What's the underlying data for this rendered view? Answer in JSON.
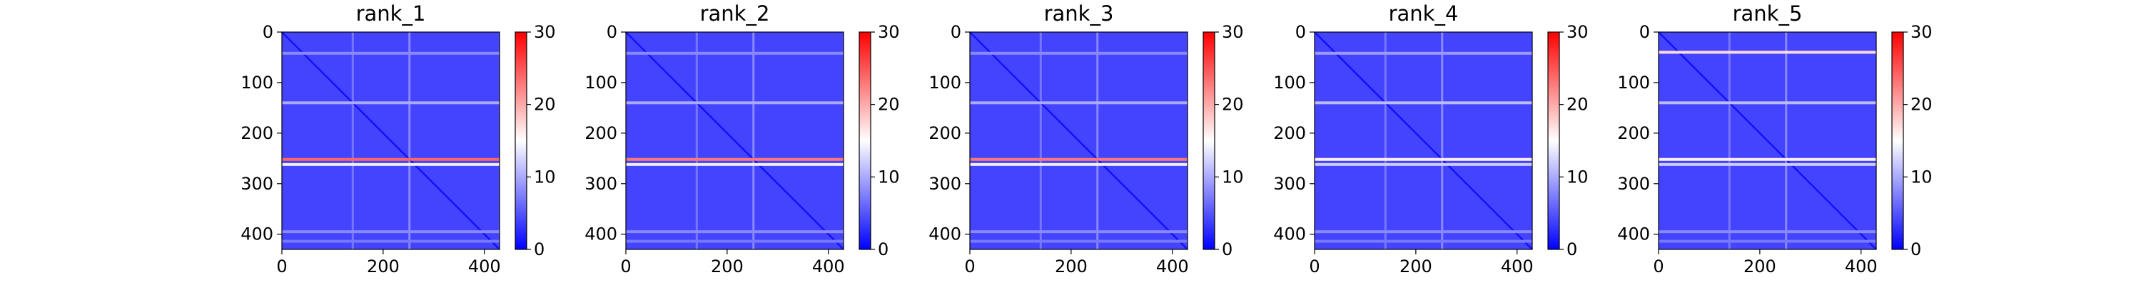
{
  "chart_data": [
    {
      "type": "heatmap",
      "title": "rank_1",
      "xlabel": "",
      "ylabel": "",
      "xlim": [
        0,
        430
      ],
      "ylim": [
        430,
        0
      ],
      "xticks": [
        "0",
        "200",
        "400"
      ],
      "yticks": [
        "0",
        "100",
        "200",
        "300",
        "400"
      ],
      "colorbar": {
        "range": [
          0,
          30
        ],
        "ticks": [
          "0",
          "10",
          "20",
          "30"
        ],
        "colormap": [
          "#0000ff",
          "#ffffff",
          "#ff0000"
        ]
      },
      "background_level": 4,
      "diagonal_level": 1,
      "highlighted_rows": [
        {
          "y": 252,
          "level": 24
        },
        {
          "y": 262,
          "level": 14
        },
        {
          "y": 140,
          "level": 10
        },
        {
          "y": 42,
          "level": 8
        },
        {
          "y": 395,
          "level": 8
        },
        {
          "y": 414,
          "level": 7
        }
      ],
      "highlighted_columns": [
        {
          "x": 252,
          "level": 8
        },
        {
          "x": 140,
          "level": 7
        }
      ]
    },
    {
      "type": "heatmap",
      "title": "rank_2",
      "xlabel": "",
      "ylabel": "",
      "xlim": [
        0,
        430
      ],
      "ylim": [
        430,
        0
      ],
      "xticks": [
        "0",
        "200",
        "400"
      ],
      "yticks": [
        "0",
        "100",
        "200",
        "300",
        "400"
      ],
      "colorbar": {
        "range": [
          0,
          30
        ],
        "ticks": [
          "0",
          "10",
          "20",
          "30"
        ],
        "colormap": [
          "#0000ff",
          "#ffffff",
          "#ff0000"
        ]
      },
      "background_level": 4,
      "diagonal_level": 1,
      "highlighted_rows": [
        {
          "y": 252,
          "level": 23
        },
        {
          "y": 262,
          "level": 14
        },
        {
          "y": 140,
          "level": 10
        },
        {
          "y": 42,
          "level": 8
        },
        {
          "y": 395,
          "level": 8
        },
        {
          "y": 414,
          "level": 7
        }
      ],
      "highlighted_columns": [
        {
          "x": 252,
          "level": 8
        },
        {
          "x": 140,
          "level": 7
        }
      ]
    },
    {
      "type": "heatmap",
      "title": "rank_3",
      "xlabel": "",
      "ylabel": "",
      "xlim": [
        0,
        430
      ],
      "ylim": [
        430,
        0
      ],
      "xticks": [
        "0",
        "200",
        "400"
      ],
      "yticks": [
        "0",
        "100",
        "200",
        "300",
        "400"
      ],
      "colorbar": {
        "range": [
          0,
          30
        ],
        "ticks": [
          "0",
          "10",
          "20",
          "30"
        ],
        "colormap": [
          "#0000ff",
          "#ffffff",
          "#ff0000"
        ]
      },
      "background_level": 4,
      "diagonal_level": 1,
      "highlighted_rows": [
        {
          "y": 252,
          "level": 23
        },
        {
          "y": 262,
          "level": 14
        },
        {
          "y": 140,
          "level": 10
        },
        {
          "y": 42,
          "level": 8
        },
        {
          "y": 395,
          "level": 8
        },
        {
          "y": 414,
          "level": 7
        }
      ],
      "highlighted_columns": [
        {
          "x": 252,
          "level": 8
        },
        {
          "x": 140,
          "level": 7
        }
      ]
    },
    {
      "type": "heatmap",
      "title": "rank_4",
      "xlabel": "",
      "ylabel": "",
      "xlim": [
        0,
        430
      ],
      "ylim": [
        430,
        0
      ],
      "xticks": [
        "0",
        "200",
        "400"
      ],
      "yticks": [
        "0",
        "100",
        "200",
        "300",
        "400"
      ],
      "colorbar": {
        "range": [
          0,
          30
        ],
        "ticks": [
          "0",
          "10",
          "20",
          "30"
        ],
        "colormap": [
          "#0000ff",
          "#ffffff",
          "#ff0000"
        ]
      },
      "background_level": 4,
      "diagonal_level": 1,
      "highlighted_rows": [
        {
          "y": 252,
          "level": 16
        },
        {
          "y": 262,
          "level": 12
        },
        {
          "y": 140,
          "level": 11
        },
        {
          "y": 42,
          "level": 9
        },
        {
          "y": 395,
          "level": 8
        },
        {
          "y": 414,
          "level": 7
        }
      ],
      "highlighted_columns": [
        {
          "x": 252,
          "level": 8
        },
        {
          "x": 140,
          "level": 7
        }
      ]
    },
    {
      "type": "heatmap",
      "title": "rank_5",
      "xlabel": "",
      "ylabel": "",
      "xlim": [
        0,
        430
      ],
      "ylim": [
        430,
        0
      ],
      "xticks": [
        "0",
        "200",
        "400"
      ],
      "yticks": [
        "0",
        "100",
        "200",
        "300",
        "400"
      ],
      "colorbar": {
        "range": [
          0,
          30
        ],
        "ticks": [
          "0",
          "10",
          "20",
          "30"
        ],
        "colormap": [
          "#0000ff",
          "#ffffff",
          "#ff0000"
        ]
      },
      "background_level": 4,
      "diagonal_level": 1,
      "highlighted_rows": [
        {
          "y": 40,
          "level": 17
        },
        {
          "y": 252,
          "level": 16
        },
        {
          "y": 262,
          "level": 12
        },
        {
          "y": 140,
          "level": 11
        },
        {
          "y": 395,
          "level": 8
        },
        {
          "y": 414,
          "level": 7
        }
      ],
      "highlighted_columns": [
        {
          "x": 252,
          "level": 8
        },
        {
          "x": 140,
          "level": 7
        }
      ]
    }
  ]
}
